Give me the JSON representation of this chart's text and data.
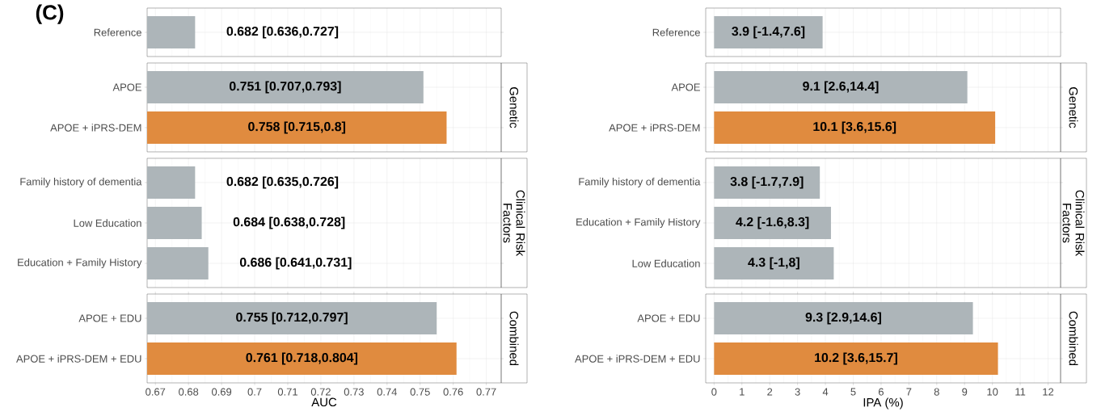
{
  "chart_data": [
    {
      "type": "bar",
      "orientation": "horizontal",
      "categories": [
        "Reference"
      ],
      "values": [
        0.682
      ],
      "colors": [
        "#adb5b9"
      ],
      "value_labels": [
        "0.682 [0.636,0.727]"
      ],
      "xlim": [
        0.6675,
        0.7745
      ],
      "xticks": [
        0.67,
        0.68,
        0.69,
        0.7,
        0.71,
        0.72,
        0.73,
        0.74,
        0.75,
        0.76,
        0.77
      ],
      "grid": true,
      "tick_labels": "y",
      "annotations": [
        "(C)"
      ]
    },
    {
      "type": "bar",
      "orientation": "horizontal",
      "annotations": [
        "Genetic"
      ],
      "categories": [
        "APOE",
        "APOE + iPRS-DEM"
      ],
      "values": [
        0.751,
        0.758
      ],
      "colors": [
        "#adb5b9",
        "#e08b3f"
      ],
      "value_labels": [
        "0.751 [0.707,0.793]",
        "0.758 [0.715,0.8]"
      ],
      "xlim": [
        0.6675,
        0.7745
      ],
      "xticks": [
        0.67,
        0.68,
        0.69,
        0.7,
        0.71,
        0.72,
        0.73,
        0.74,
        0.75,
        0.76,
        0.77
      ],
      "grid": true,
      "tick_labels": "y"
    },
    {
      "type": "bar",
      "orientation": "horizontal",
      "annotations": [
        "Clinical Risk Factors"
      ],
      "categories": [
        "Family history of dementia",
        "Low Education",
        "Education + Family History"
      ],
      "values": [
        0.682,
        0.684,
        0.686
      ],
      "colors": [
        "#adb5b9",
        "#adb5b9",
        "#adb5b9"
      ],
      "value_labels": [
        "0.682 [0.635,0.726]",
        "0.684 [0.638,0.728]",
        "0.686 [0.641,0.731]"
      ],
      "xlim": [
        0.6675,
        0.7745
      ],
      "xticks": [
        0.67,
        0.68,
        0.69,
        0.7,
        0.71,
        0.72,
        0.73,
        0.74,
        0.75,
        0.76,
        0.77
      ],
      "grid": true,
      "tick_labels": "y"
    },
    {
      "type": "bar",
      "orientation": "horizontal",
      "annotations": [
        "Combined"
      ],
      "xlabel": "AUC",
      "categories": [
        "APOE + EDU",
        "APOE + iPRS-DEM + EDU"
      ],
      "values": [
        0.755,
        0.761
      ],
      "colors": [
        "#adb5b9",
        "#e08b3f"
      ],
      "value_labels": [
        "0.755 [0.712,0.797]",
        "0.761 [0.718,0.804]"
      ],
      "xlim": [
        0.6675,
        0.7745
      ],
      "xticks": [
        0.67,
        0.68,
        0.69,
        0.7,
        0.71,
        0.72,
        0.73,
        0.74,
        0.75,
        0.76,
        0.77
      ],
      "grid": true
    },
    {
      "type": "bar",
      "orientation": "horizontal",
      "categories": [
        "Reference"
      ],
      "values": [
        3.9
      ],
      "colors": [
        "#adb5b9"
      ],
      "value_labels": [
        "3.9 [-1.4,7.6]"
      ],
      "xlim": [
        -0.3,
        12.45
      ],
      "xticks": [
        0,
        1,
        2,
        3,
        4,
        5,
        6,
        7,
        8,
        9,
        10,
        11,
        12
      ],
      "grid": true,
      "tick_labels": "y"
    },
    {
      "type": "bar",
      "orientation": "horizontal",
      "annotations": [
        "Genetic"
      ],
      "categories": [
        "APOE",
        "APOE + iPRS-DEM"
      ],
      "values": [
        9.1,
        10.1
      ],
      "colors": [
        "#adb5b9",
        "#e08b3f"
      ],
      "value_labels": [
        "9.1 [2.6,14.4]",
        "10.1 [3.6,15.6]"
      ],
      "xlim": [
        -0.3,
        12.45
      ],
      "xticks": [
        0,
        1,
        2,
        3,
        4,
        5,
        6,
        7,
        8,
        9,
        10,
        11,
        12
      ],
      "grid": true,
      "tick_labels": "y"
    },
    {
      "type": "bar",
      "orientation": "horizontal",
      "annotations": [
        "Clinical Risk Factors"
      ],
      "categories": [
        "Family history of dementia",
        "Education + Family History",
        "Low Education"
      ],
      "values": [
        3.8,
        4.2,
        4.3
      ],
      "colors": [
        "#adb5b9",
        "#adb5b9",
        "#adb5b9"
      ],
      "value_labels": [
        "3.8 [-1.7,7.9]",
        "4.2 [-1.6,8.3]",
        "4.3 [-1,8]"
      ],
      "xlim": [
        -0.3,
        12.45
      ],
      "xticks": [
        0,
        1,
        2,
        3,
        4,
        5,
        6,
        7,
        8,
        9,
        10,
        11,
        12
      ],
      "grid": true,
      "tick_labels": "y"
    },
    {
      "type": "bar",
      "orientation": "horizontal",
      "annotations": [
        "Combined"
      ],
      "xlabel": "IPA (%)",
      "categories": [
        "APOE + EDU",
        "APOE + iPRS-DEM + EDU"
      ],
      "values": [
        9.3,
        10.2
      ],
      "colors": [
        "#adb5b9",
        "#e08b3f"
      ],
      "value_labels": [
        "9.3 [2.9,14.6]",
        "10.2 [3.6,15.7]"
      ],
      "xlim": [
        -0.3,
        12.45
      ],
      "xticks": [
        0,
        1,
        2,
        3,
        4,
        5,
        6,
        7,
        8,
        9,
        10,
        11,
        12
      ],
      "grid": true
    }
  ]
}
